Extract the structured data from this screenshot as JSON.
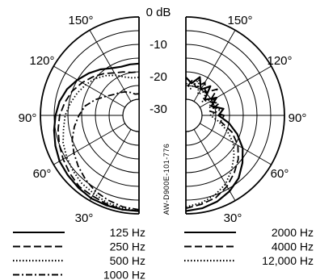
{
  "chart_data": {
    "type": "polar",
    "angle_labels": {
      "a150": "150°",
      "a120": "120°",
      "a90": "90°",
      "a60": "60°",
      "a30": "30°"
    },
    "db_labels": [
      "0 dB",
      "-10",
      "-20",
      "-30"
    ],
    "rlim": [
      -30,
      0
    ],
    "vertical_code": "AW-D900E-101-776",
    "left_panel": {
      "series": [
        {
          "name": "125 Hz",
          "style": "solid",
          "points": [
            [
              0,
              -1
            ],
            [
              10,
              -1
            ],
            [
              20,
              -1
            ],
            [
              30,
              -1
            ],
            [
              40,
              -1.5
            ],
            [
              50,
              -2
            ],
            [
              60,
              -2.5
            ],
            [
              70,
              -3.5
            ],
            [
              80,
              -4.5
            ],
            [
              90,
              -5.5
            ],
            [
              100,
              -6.5
            ],
            [
              110,
              -8
            ],
            [
              120,
              -10
            ],
            [
              130,
              -12
            ],
            [
              140,
              -14
            ],
            [
              150,
              -16
            ],
            [
              160,
              -17
            ],
            [
              170,
              -17
            ],
            [
              180,
              -17
            ]
          ]
        },
        {
          "name": "250 Hz",
          "style": "dashed",
          "points": [
            [
              0,
              -1
            ],
            [
              10,
              -1
            ],
            [
              20,
              -1.5
            ],
            [
              30,
              -2
            ],
            [
              40,
              -2
            ],
            [
              50,
              -3
            ],
            [
              60,
              -4
            ],
            [
              70,
              -5
            ],
            [
              80,
              -6
            ],
            [
              90,
              -7
            ],
            [
              100,
              -8.5
            ],
            [
              110,
              -10
            ],
            [
              120,
              -12
            ],
            [
              130,
              -14
            ],
            [
              140,
              -16
            ],
            [
              150,
              -18
            ],
            [
              160,
              -19
            ],
            [
              170,
              -20
            ],
            [
              180,
              -20
            ]
          ]
        },
        {
          "name": "500 Hz",
          "style": "dotted",
          "points": [
            [
              0,
              -1
            ],
            [
              10,
              -1.5
            ],
            [
              20,
              -2
            ],
            [
              30,
              -3
            ],
            [
              40,
              -3.5
            ],
            [
              50,
              -4.5
            ],
            [
              60,
              -5.5
            ],
            [
              70,
              -6.5
            ],
            [
              80,
              -8
            ],
            [
              90,
              -9
            ],
            [
              100,
              -10.5
            ],
            [
              110,
              -12
            ],
            [
              120,
              -13.5
            ],
            [
              130,
              -15
            ],
            [
              140,
              -17
            ],
            [
              150,
              -19
            ],
            [
              160,
              -21
            ],
            [
              170,
              -22
            ],
            [
              180,
              -22
            ]
          ]
        },
        {
          "name": "1000 Hz",
          "style": "dash-dot",
          "points": [
            [
              0,
              -1.5
            ],
            [
              10,
              -2
            ],
            [
              20,
              -3
            ],
            [
              30,
              -4
            ],
            [
              40,
              -5.5
            ],
            [
              50,
              -7
            ],
            [
              60,
              -8.5
            ],
            [
              70,
              -10
            ],
            [
              80,
              -12
            ],
            [
              90,
              -14
            ],
            [
              100,
              -16
            ],
            [
              110,
              -19
            ],
            [
              120,
              -22
            ],
            [
              130,
              -24
            ],
            [
              140,
              -25
            ],
            [
              150,
              -26
            ],
            [
              160,
              -27
            ],
            [
              170,
              -28
            ],
            [
              180,
              -28
            ]
          ]
        }
      ]
    },
    "right_panel": {
      "series": [
        {
          "name": "2000 Hz",
          "style": "solid",
          "points": [
            [
              0,
              -1
            ],
            [
              10,
              -1.5
            ],
            [
              20,
              -2.5
            ],
            [
              30,
              -4
            ],
            [
              40,
              -6
            ],
            [
              50,
              -9
            ],
            [
              60,
              -12
            ],
            [
              70,
              -16
            ],
            [
              80,
              -20
            ],
            [
              90,
              -24
            ],
            [
              100,
              -22
            ],
            [
              110,
              -26
            ],
            [
              120,
              -23
            ],
            [
              130,
              -27
            ],
            [
              140,
              -22
            ],
            [
              150,
              -25
            ],
            [
              160,
              -21
            ],
            [
              170,
              -24
            ],
            [
              180,
              -22
            ]
          ]
        },
        {
          "name": "4000 Hz",
          "style": "dashed",
          "points": [
            [
              0,
              -2
            ],
            [
              10,
              -3
            ],
            [
              20,
              -4
            ],
            [
              30,
              -6
            ],
            [
              40,
              -8.5
            ],
            [
              50,
              -11
            ],
            [
              60,
              -14
            ],
            [
              70,
              -18
            ],
            [
              80,
              -23
            ],
            [
              90,
              -22
            ],
            [
              100,
              -27
            ],
            [
              110,
              -23
            ],
            [
              120,
              -26
            ],
            [
              130,
              -21
            ],
            [
              140,
              -25
            ],
            [
              150,
              -22
            ],
            [
              160,
              -25
            ],
            [
              170,
              -23
            ],
            [
              180,
              -26
            ]
          ]
        },
        {
          "name": "12,000 Hz",
          "style": "dotted",
          "points": [
            [
              0,
              -2.5
            ],
            [
              10,
              -3.5
            ],
            [
              20,
              -5
            ],
            [
              30,
              -7
            ],
            [
              40,
              -10
            ],
            [
              50,
              -13
            ],
            [
              60,
              -16
            ],
            [
              70,
              -20
            ],
            [
              80,
              -24
            ],
            [
              90,
              -27
            ],
            [
              100,
              -23
            ],
            [
              110,
              -27
            ],
            [
              120,
              -24
            ],
            [
              130,
              -28
            ],
            [
              140,
              -24
            ],
            [
              150,
              -27
            ],
            [
              160,
              -22
            ],
            [
              170,
              -26
            ],
            [
              180,
              -24
            ]
          ]
        }
      ]
    }
  }
}
